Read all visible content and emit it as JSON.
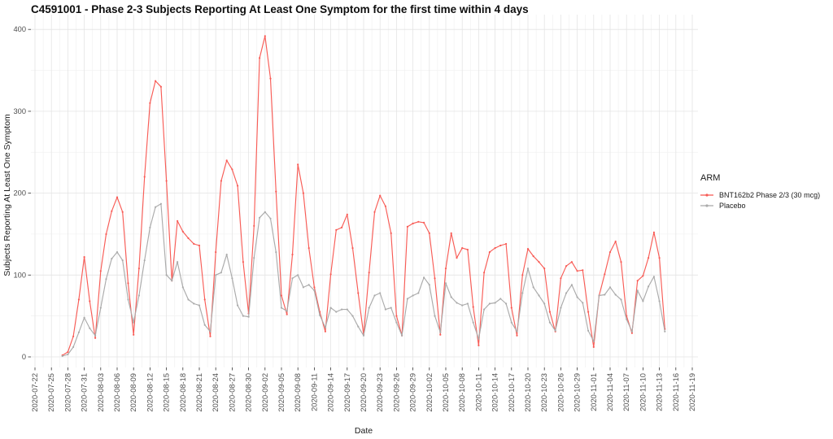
{
  "window": {
    "title": "C4591001 - Phase 2-3 Subjects Reporting At Least One Symptom for the first time within 4 days"
  },
  "chart_data": {
    "type": "line",
    "title": "C4591001 - Phase 2-3 Subjects Reporting At Least One Symptom for the first time within 4 days",
    "xlabel": "Date",
    "ylabel": "Subjects Reporting At Least One Symptom",
    "ylim": [
      0,
      400
    ],
    "y_ticks": [
      0,
      100,
      200,
      300,
      400
    ],
    "grid": true,
    "x_tick_interval_days": 3,
    "x_tick_labels": [
      "2020-07-22",
      "2020-07-25",
      "2020-07-28",
      "2020-07-31",
      "2020-08-03",
      "2020-08-06",
      "2020-08-09",
      "2020-08-12",
      "2020-08-15",
      "2020-08-18",
      "2020-08-21",
      "2020-08-24",
      "2020-08-27",
      "2020-08-30",
      "2020-09-02",
      "2020-09-05",
      "2020-09-08",
      "2020-09-11",
      "2020-09-14",
      "2020-09-17",
      "2020-09-20",
      "2020-09-23",
      "2020-09-26",
      "2020-09-29",
      "2020-10-02",
      "2020-10-05",
      "2020-10-08",
      "2020-10-11",
      "2020-10-14",
      "2020-10-17",
      "2020-10-20",
      "2020-10-23",
      "2020-10-26",
      "2020-10-29",
      "2020-11-01",
      "2020-11-04",
      "2020-11-07",
      "2020-11-10",
      "2020-11-13",
      "2020-11-16",
      "2020-11-19"
    ],
    "points_start_date": "2020-07-27",
    "points_frequency": "daily",
    "legend_title": "ARM",
    "legend_position": "right",
    "series": [
      {
        "name": "BNT162b2 Phase 2/3 (30 mcg)",
        "color": "#f85c56",
        "values": [
          2,
          6,
          25,
          70,
          122,
          68,
          23,
          105,
          150,
          178,
          195,
          177,
          90,
          27,
          108,
          220,
          310,
          337,
          330,
          215,
          93,
          166,
          153,
          145,
          138,
          136,
          70,
          25,
          128,
          215,
          240,
          229,
          209,
          116,
          53,
          160,
          365,
          392,
          340,
          202,
          75,
          52,
          125,
          235,
          200,
          133,
          85,
          55,
          31,
          101,
          155,
          158,
          174,
          133,
          78,
          27,
          103,
          177,
          197,
          184,
          151,
          50,
          26,
          159,
          163,
          165,
          164,
          151,
          96,
          27,
          108,
          151,
          121,
          133,
          131,
          61,
          14,
          103,
          128,
          133,
          136,
          138,
          60,
          26,
          100,
          132,
          123,
          116,
          108,
          55,
          31,
          96,
          111,
          116,
          105,
          106,
          55,
          12,
          75,
          101,
          128,
          141,
          116,
          50,
          29,
          93,
          99,
          121,
          152,
          121,
          34
        ]
      },
      {
        "name": "Placebo",
        "color": "#ababab",
        "values": [
          1,
          3,
          12,
          30,
          48,
          35,
          26,
          60,
          95,
          120,
          128,
          118,
          70,
          42,
          75,
          118,
          158,
          183,
          187,
          100,
          93,
          116,
          85,
          70,
          65,
          63,
          39,
          31,
          100,
          103,
          125,
          96,
          63,
          50,
          49,
          121,
          170,
          177,
          169,
          128,
          60,
          56,
          96,
          100,
          85,
          88,
          81,
          51,
          36,
          60,
          55,
          58,
          58,
          50,
          37,
          26,
          60,
          75,
          78,
          58,
          60,
          42,
          26,
          71,
          75,
          78,
          97,
          88,
          50,
          30,
          90,
          73,
          66,
          63,
          65,
          42,
          22,
          58,
          65,
          66,
          71,
          65,
          42,
          31,
          78,
          108,
          85,
          75,
          65,
          42,
          32,
          60,
          78,
          88,
          73,
          66,
          32,
          19,
          75,
          76,
          85,
          76,
          70,
          46,
          31,
          81,
          68,
          86,
          98,
          68,
          31
        ]
      }
    ]
  }
}
